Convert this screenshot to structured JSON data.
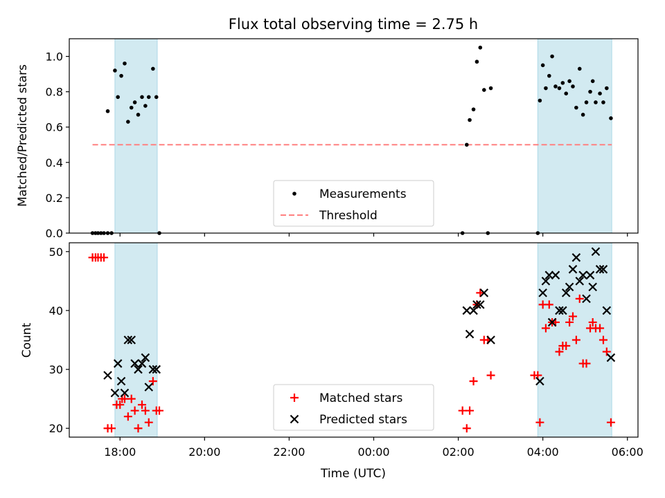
{
  "chart_data": {
    "type": "scatter",
    "title": "Flux total observing time = 2.75 h",
    "xlabel": "Time (UTC)",
    "x_unit": "hours since 17:00 UTC",
    "x_ticks": [
      {
        "value": 1,
        "label": "18:00"
      },
      {
        "value": 3,
        "label": "20:00"
      },
      {
        "value": 5,
        "label": "22:00"
      },
      {
        "value": 7,
        "label": "00:00"
      },
      {
        "value": 9,
        "label": "02:00"
      },
      {
        "value": 11,
        "label": "04:00"
      },
      {
        "value": 13,
        "label": "06:00"
      }
    ],
    "xlim": [
      -0.2,
      13.25
    ],
    "shaded_intervals": [
      [
        0.88,
        1.88
      ],
      [
        10.88,
        12.63
      ]
    ],
    "panels": [
      {
        "name": "ratio",
        "ylabel": "Matched/Predicted stars",
        "ylim": [
          0,
          1.1
        ],
        "y_ticks": [
          {
            "value": 0.0,
            "label": "0.0"
          },
          {
            "value": 0.2,
            "label": "0.2"
          },
          {
            "value": 0.4,
            "label": "0.4"
          },
          {
            "value": 0.6,
            "label": "0.6"
          },
          {
            "value": 0.8,
            "label": "0.8"
          },
          {
            "value": 1.0,
            "label": "1.0"
          }
        ],
        "threshold": {
          "value": 0.5,
          "x_range": [
            0.35,
            12.63
          ]
        },
        "series": [
          {
            "name": "Measurements",
            "marker": "dot",
            "color": "#000000",
            "points": [
              [
                0.35,
                0
              ],
              [
                0.42,
                0
              ],
              [
                0.48,
                0
              ],
              [
                0.55,
                0
              ],
              [
                0.62,
                0
              ],
              [
                0.71,
                0
              ],
              [
                0.8,
                0
              ],
              [
                0.71,
                0.69
              ],
              [
                0.88,
                0.92
              ],
              [
                0.95,
                0.77
              ],
              [
                1.03,
                0.89
              ],
              [
                1.11,
                0.96
              ],
              [
                1.19,
                0.63
              ],
              [
                1.27,
                0.71
              ],
              [
                1.35,
                0.74
              ],
              [
                1.43,
                0.67
              ],
              [
                1.52,
                0.77
              ],
              [
                1.6,
                0.72
              ],
              [
                1.68,
                0.77
              ],
              [
                1.78,
                0.93
              ],
              [
                1.86,
                0.77
              ],
              [
                1.93,
                0
              ],
              [
                9.1,
                0
              ],
              [
                9.2,
                0.5
              ],
              [
                9.27,
                0.64
              ],
              [
                9.36,
                0.7
              ],
              [
                9.44,
                0.97
              ],
              [
                9.52,
                1.05
              ],
              [
                9.61,
                0.81
              ],
              [
                9.7,
                0
              ],
              [
                9.77,
                0.82
              ],
              [
                10.88,
                0
              ],
              [
                10.93,
                0.75
              ],
              [
                11.0,
                0.95
              ],
              [
                11.07,
                0.82
              ],
              [
                11.15,
                0.89
              ],
              [
                11.22,
                1.0
              ],
              [
                11.3,
                0.83
              ],
              [
                11.39,
                0.82
              ],
              [
                11.47,
                0.85
              ],
              [
                11.55,
                0.79
              ],
              [
                11.63,
                0.86
              ],
              [
                11.71,
                0.83
              ],
              [
                11.79,
                0.71
              ],
              [
                11.87,
                0.93
              ],
              [
                11.95,
                0.67
              ],
              [
                12.03,
                0.74
              ],
              [
                12.12,
                0.8
              ],
              [
                12.18,
                0.86
              ],
              [
                12.25,
                0.74
              ],
              [
                12.35,
                0.79
              ],
              [
                12.43,
                0.74
              ],
              [
                12.51,
                0.82
              ],
              [
                12.61,
                0.65
              ]
            ]
          },
          {
            "name": "Threshold",
            "style": "dashed",
            "color": "#ff8080",
            "value": 0.5
          }
        ],
        "legend": {
          "position": "bottom-center",
          "entries": [
            "Measurements",
            "Threshold"
          ]
        }
      },
      {
        "name": "counts",
        "ylabel": "Count",
        "ylim": [
          18.5,
          51.5
        ],
        "y_ticks": [
          {
            "value": 20,
            "label": "20"
          },
          {
            "value": 30,
            "label": "30"
          },
          {
            "value": 40,
            "label": "40"
          },
          {
            "value": 50,
            "label": "50"
          }
        ],
        "series": [
          {
            "name": "Matched stars",
            "marker": "plus",
            "color": "#ff0000",
            "points": [
              [
                0.35,
                49
              ],
              [
                0.42,
                49
              ],
              [
                0.48,
                49
              ],
              [
                0.55,
                49
              ],
              [
                0.62,
                49
              ],
              [
                0.71,
                20
              ],
              [
                0.8,
                20
              ],
              [
                0.92,
                24
              ],
              [
                1.0,
                24
              ],
              [
                1.05,
                25
              ],
              [
                1.11,
                25
              ],
              [
                1.19,
                22
              ],
              [
                1.27,
                25
              ],
              [
                1.35,
                23
              ],
              [
                1.43,
                20
              ],
              [
                1.52,
                24
              ],
              [
                1.6,
                23
              ],
              [
                1.68,
                21
              ],
              [
                1.78,
                28
              ],
              [
                1.86,
                23
              ],
              [
                1.93,
                23
              ],
              [
                9.1,
                23
              ],
              [
                9.2,
                20
              ],
              [
                9.27,
                23
              ],
              [
                9.36,
                28
              ],
              [
                9.44,
                41
              ],
              [
                9.52,
                43
              ],
              [
                9.61,
                35
              ],
              [
                9.7,
                35
              ],
              [
                9.77,
                29
              ],
              [
                10.8,
                29
              ],
              [
                10.88,
                29
              ],
              [
                10.93,
                21
              ],
              [
                11.0,
                41
              ],
              [
                11.07,
                37
              ],
              [
                11.15,
                41
              ],
              [
                11.22,
                38
              ],
              [
                11.3,
                38
              ],
              [
                11.39,
                33
              ],
              [
                11.47,
                34
              ],
              [
                11.55,
                34
              ],
              [
                11.63,
                38
              ],
              [
                11.71,
                39
              ],
              [
                11.79,
                35
              ],
              [
                11.87,
                42
              ],
              [
                11.95,
                31
              ],
              [
                12.03,
                31
              ],
              [
                12.12,
                37
              ],
              [
                12.18,
                38
              ],
              [
                12.25,
                37
              ],
              [
                12.35,
                37
              ],
              [
                12.43,
                35
              ],
              [
                12.51,
                33
              ],
              [
                12.61,
                21
              ]
            ]
          },
          {
            "name": "Predicted stars",
            "marker": "x",
            "color": "#000000",
            "points": [
              [
                0.71,
                29
              ],
              [
                0.88,
                26
              ],
              [
                0.95,
                31
              ],
              [
                1.03,
                28
              ],
              [
                1.11,
                26
              ],
              [
                1.19,
                35
              ],
              [
                1.27,
                35
              ],
              [
                1.35,
                31
              ],
              [
                1.43,
                30
              ],
              [
                1.52,
                31
              ],
              [
                1.6,
                32
              ],
              [
                1.68,
                27
              ],
              [
                1.78,
                30
              ],
              [
                1.86,
                30
              ],
              [
                9.2,
                40
              ],
              [
                9.27,
                36
              ],
              [
                9.36,
                40
              ],
              [
                9.44,
                41
              ],
              [
                9.52,
                41
              ],
              [
                9.61,
                43
              ],
              [
                9.77,
                35
              ],
              [
                10.93,
                28
              ],
              [
                11.0,
                43
              ],
              [
                11.07,
                45
              ],
              [
                11.15,
                46
              ],
              [
                11.22,
                38
              ],
              [
                11.3,
                46
              ],
              [
                11.39,
                40
              ],
              [
                11.47,
                40
              ],
              [
                11.55,
                43
              ],
              [
                11.63,
                44
              ],
              [
                11.71,
                47
              ],
              [
                11.79,
                49
              ],
              [
                11.87,
                45
              ],
              [
                11.95,
                46
              ],
              [
                12.03,
                42
              ],
              [
                12.12,
                46
              ],
              [
                12.18,
                44
              ],
              [
                12.25,
                50
              ],
              [
                12.35,
                47
              ],
              [
                12.43,
                47
              ],
              [
                12.51,
                40
              ],
              [
                12.61,
                32
              ]
            ]
          }
        ],
        "legend": {
          "position": "bottom-center",
          "entries": [
            "Matched stars",
            "Predicted stars"
          ]
        }
      }
    ]
  }
}
